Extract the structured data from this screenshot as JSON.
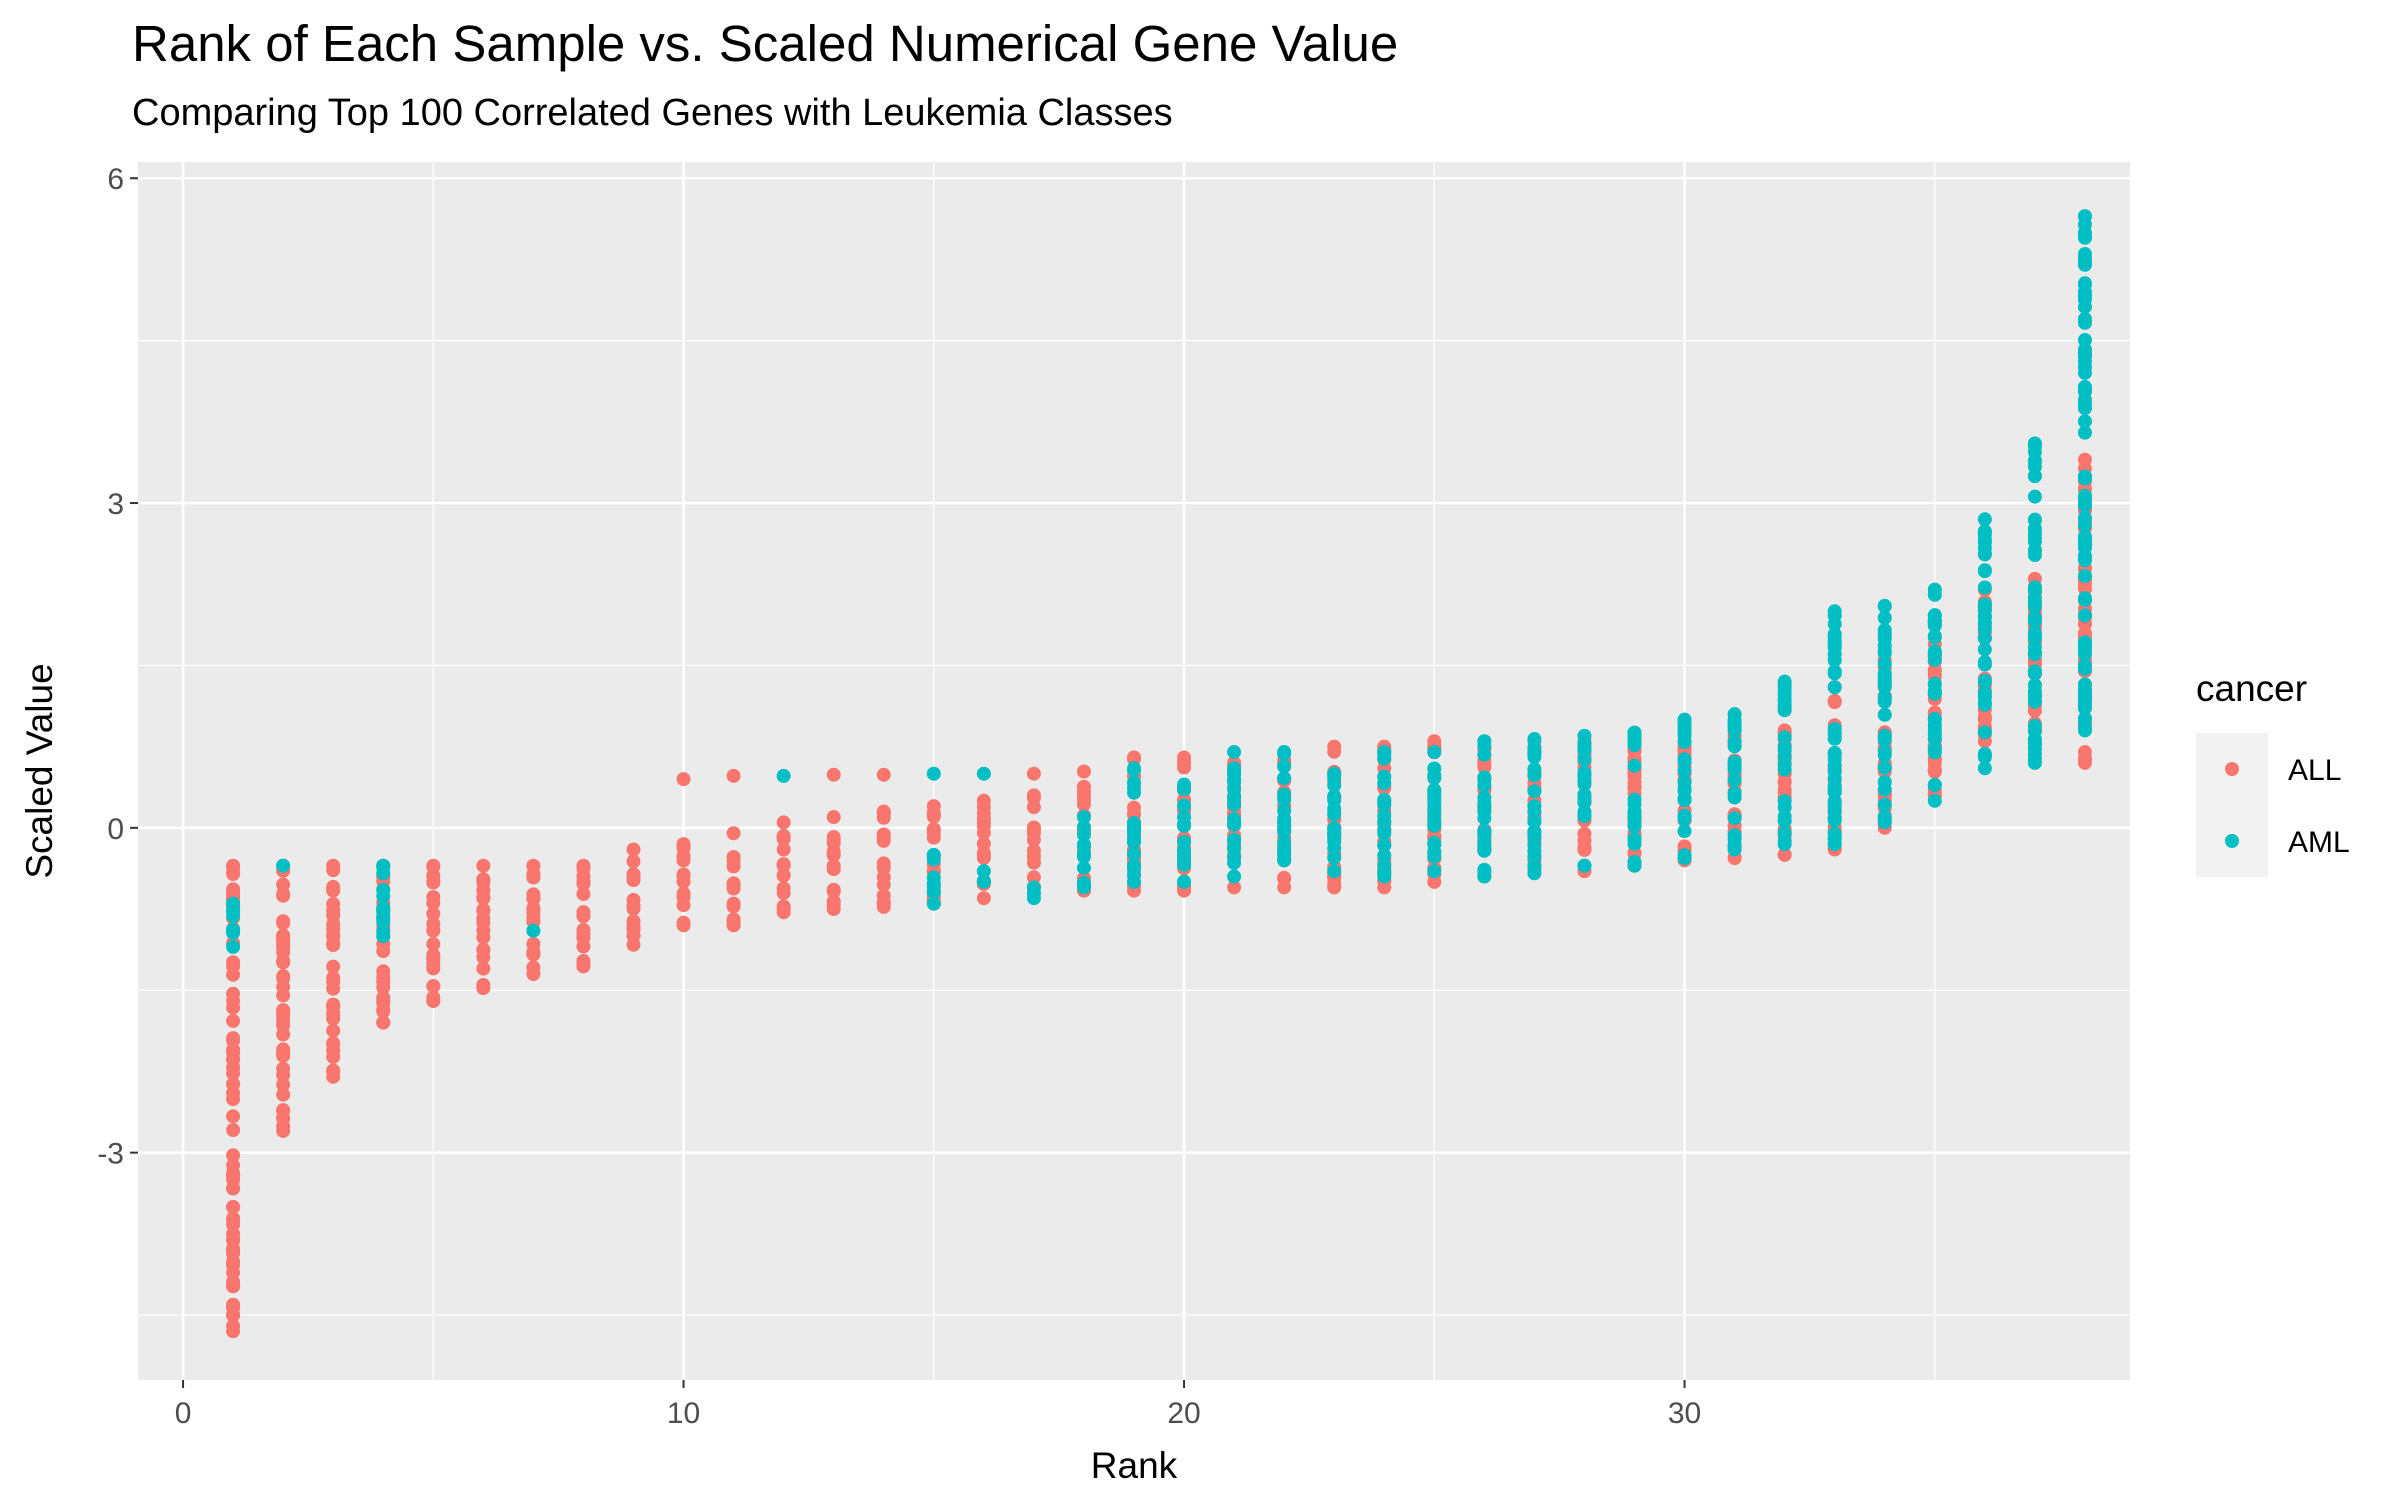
{
  "chart_data": {
    "type": "scatter",
    "title": "Rank of Each Sample vs. Scaled Numerical Gene Value",
    "subtitle": "Comparing Top 100 Correlated Genes with Leukemia Classes",
    "xlabel": "Rank",
    "ylabel": "Scaled Value",
    "xlim": [
      -0.9,
      38.9
    ],
    "ylim": [
      -5.1,
      6.15
    ],
    "x_ticks": [
      0,
      10,
      20,
      30
    ],
    "y_ticks": [
      -3,
      0,
      3,
      6
    ],
    "x_tick_labels": [
      "0",
      "10",
      "20",
      "30"
    ],
    "y_tick_labels": [
      "-3",
      "0",
      "3",
      "6"
    ],
    "grid": true,
    "legend": {
      "title": "cancer",
      "position": "right"
    },
    "colors": {
      "ALL": "#F8766D",
      "AML": "#00BFC4",
      "panel": "#EBEBEB",
      "grid": "#FFFFFF"
    },
    "series": [
      {
        "name": "ALL",
        "color": "#F8766D",
        "ranges": [
          {
            "x": 1,
            "min": -4.65,
            "max": -0.35
          },
          {
            "x": 2,
            "min": -2.8,
            "max": -0.35
          },
          {
            "x": 3,
            "min": -2.3,
            "max": -0.35
          },
          {
            "x": 4,
            "min": -1.8,
            "max": -0.35
          },
          {
            "x": 5,
            "min": -1.6,
            "max": -0.35
          },
          {
            "x": 6,
            "min": -1.48,
            "max": -0.35
          },
          {
            "x": 7,
            "min": -1.35,
            "max": -0.35
          },
          {
            "x": 8,
            "min": -1.28,
            "max": -0.35
          },
          {
            "x": 9,
            "min": -1.08,
            "max": -0.2
          },
          {
            "x": 10,
            "min": -0.9,
            "max": -0.15
          },
          {
            "x": 11,
            "min": -0.9,
            "max": -0.05
          },
          {
            "x": 12,
            "min": -0.78,
            "max": 0.05
          },
          {
            "x": 13,
            "min": -0.75,
            "max": 0.1
          },
          {
            "x": 14,
            "min": -0.73,
            "max": 0.15
          },
          {
            "x": 15,
            "min": -0.7,
            "max": 0.2
          },
          {
            "x": 16,
            "min": -0.65,
            "max": 0.25
          },
          {
            "x": 17,
            "min": -0.6,
            "max": 0.3
          },
          {
            "x": 18,
            "min": -0.58,
            "max": 0.38
          },
          {
            "x": 19,
            "min": -0.58,
            "max": 0.65
          },
          {
            "x": 20,
            "min": -0.58,
            "max": 0.65
          },
          {
            "x": 21,
            "min": -0.55,
            "max": 0.6
          },
          {
            "x": 22,
            "min": -0.55,
            "max": 0.62
          },
          {
            "x": 23,
            "min": -0.55,
            "max": 0.75
          },
          {
            "x": 24,
            "min": -0.55,
            "max": 0.75
          },
          {
            "x": 25,
            "min": -0.5,
            "max": 0.8
          },
          {
            "x": 26,
            "min": -0.45,
            "max": 0.8
          },
          {
            "x": 27,
            "min": -0.4,
            "max": 0.8
          },
          {
            "x": 28,
            "min": -0.4,
            "max": 0.8
          },
          {
            "x": 29,
            "min": -0.35,
            "max": 0.8
          },
          {
            "x": 30,
            "min": -0.3,
            "max": 0.8
          },
          {
            "x": 31,
            "min": -0.28,
            "max": 0.85
          },
          {
            "x": 32,
            "min": -0.25,
            "max": 0.9
          },
          {
            "x": 33,
            "min": -0.2,
            "max": 1.3
          },
          {
            "x": 34,
            "min": 0.0,
            "max": 1.55
          },
          {
            "x": 35,
            "min": 0.3,
            "max": 1.9
          },
          {
            "x": 36,
            "min": 0.8,
            "max": 2.2
          },
          {
            "x": 37,
            "min": 0.9,
            "max": 2.3
          },
          {
            "x": 38,
            "min": 0.6,
            "max": 3.4
          }
        ],
        "extra_points": [
          {
            "x": 10,
            "y": 0.45
          },
          {
            "x": 11,
            "y": 0.48
          },
          {
            "x": 13,
            "y": 0.49
          },
          {
            "x": 14,
            "y": 0.49
          },
          {
            "x": 17,
            "y": 0.5
          },
          {
            "x": 18,
            "y": 0.52
          }
        ]
      },
      {
        "name": "AML",
        "color": "#00BFC4",
        "ranges": [
          {
            "x": 1,
            "min": -1.1,
            "max": -0.7
          },
          {
            "x": 2,
            "min": -0.35,
            "max": -0.35
          },
          {
            "x": 4,
            "min": -1.0,
            "max": -0.35
          },
          {
            "x": 7,
            "min": -0.95,
            "max": -0.95
          },
          {
            "x": 15,
            "min": -0.7,
            "max": -0.25
          },
          {
            "x": 16,
            "min": -0.5,
            "max": -0.4
          },
          {
            "x": 17,
            "min": -0.65,
            "max": -0.55
          },
          {
            "x": 18,
            "min": -0.55,
            "max": 0.1
          },
          {
            "x": 19,
            "min": -0.5,
            "max": 0.55
          },
          {
            "x": 20,
            "min": -0.5,
            "max": 0.4
          },
          {
            "x": 21,
            "min": -0.45,
            "max": 0.7
          },
          {
            "x": 22,
            "min": -0.3,
            "max": 0.7
          },
          {
            "x": 23,
            "min": -0.4,
            "max": 0.5
          },
          {
            "x": 24,
            "min": -0.45,
            "max": 0.7
          },
          {
            "x": 25,
            "min": -0.4,
            "max": 0.7
          },
          {
            "x": 26,
            "min": -0.45,
            "max": 0.8
          },
          {
            "x": 27,
            "min": -0.42,
            "max": 0.82
          },
          {
            "x": 28,
            "min": -0.35,
            "max": 0.85
          },
          {
            "x": 29,
            "min": -0.35,
            "max": 0.88
          },
          {
            "x": 30,
            "min": -0.28,
            "max": 1.0
          },
          {
            "x": 31,
            "min": -0.2,
            "max": 1.05
          },
          {
            "x": 32,
            "min": -0.15,
            "max": 1.35
          },
          {
            "x": 33,
            "min": -0.15,
            "max": 2.0
          },
          {
            "x": 34,
            "min": 0.05,
            "max": 2.05
          },
          {
            "x": 35,
            "min": 0.25,
            "max": 2.2
          },
          {
            "x": 36,
            "min": 0.55,
            "max": 2.85
          },
          {
            "x": 37,
            "min": 0.6,
            "max": 3.55
          },
          {
            "x": 38,
            "min": 0.9,
            "max": 5.65
          }
        ],
        "extra_points": [
          {
            "x": 12,
            "y": 0.48
          },
          {
            "x": 15,
            "y": 0.5
          },
          {
            "x": 16,
            "y": 0.5
          },
          {
            "x": 38,
            "y": 5.45
          },
          {
            "x": 38,
            "y": 5.3
          },
          {
            "x": 38,
            "y": 5.2
          },
          {
            "x": 38,
            "y": 4.9
          },
          {
            "x": 38,
            "y": 4.7
          }
        ]
      }
    ]
  }
}
